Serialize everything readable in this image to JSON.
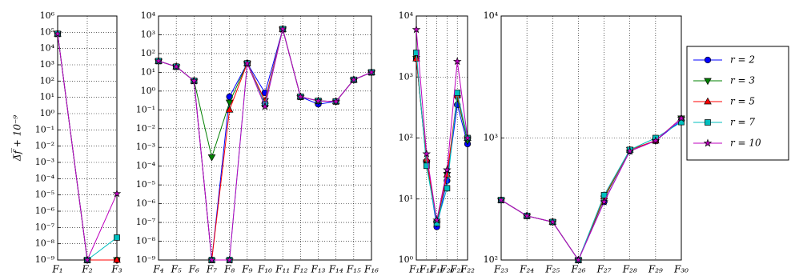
{
  "chart_data": [
    {
      "type": "line",
      "log_y": true,
      "grid": true,
      "ylabel": "Δ̅f̅ + 10⁻⁹",
      "categories": [
        "F₁",
        "F₂",
        "F₃"
      ],
      "ylim": [
        1e-09,
        1000000.0
      ],
      "yticks": [
        {
          "value": 1e-09,
          "label": "10⁻⁹"
        },
        {
          "value": 1e-08,
          "label": "10⁻⁸"
        },
        {
          "value": 1e-07,
          "label": "10⁻⁷"
        },
        {
          "value": 1e-06,
          "label": "10⁻⁶"
        },
        {
          "value": 1e-05,
          "label": "10⁻⁵"
        },
        {
          "value": 0.0001,
          "label": "10⁻⁴"
        },
        {
          "value": 0.001,
          "label": "10⁻³"
        },
        {
          "value": 0.01,
          "label": "10⁻²"
        },
        {
          "value": 0.1,
          "label": "10⁻¹"
        },
        {
          "value": 1,
          "label": "10⁰"
        },
        {
          "value": 10,
          "label": "10¹"
        },
        {
          "value": 100,
          "label": "10²"
        },
        {
          "value": 1000,
          "label": "10³"
        },
        {
          "value": 10000,
          "label": "10⁴"
        },
        {
          "value": 100000,
          "label": "10⁵"
        },
        {
          "value": 1000000,
          "label": "10⁶"
        }
      ],
      "series": [
        {
          "color": "#0000ff",
          "marker": "circle",
          "values": [
            80000,
            1e-09,
            1e-09
          ]
        },
        {
          "color": "#008000",
          "marker": "triangle-down",
          "values": [
            80000,
            1e-09,
            1e-09
          ]
        },
        {
          "color": "#ff0000",
          "marker": "triangle-up",
          "values": [
            80000,
            1e-09,
            1e-09
          ]
        },
        {
          "color": "#00bfbf",
          "marker": "square",
          "values": [
            80000,
            1e-09,
            2.4e-08
          ]
        },
        {
          "color": "#bf00bf",
          "marker": "star",
          "values": [
            80000,
            1e-09,
            1.2e-05
          ]
        }
      ]
    },
    {
      "type": "line",
      "log_y": true,
      "grid": true,
      "categories": [
        "F₄",
        "F₅",
        "F₆",
        "F₇",
        "F₈",
        "F₉",
        "F₁₀",
        "F₁₁",
        "F₁₂",
        "F₁₃",
        "F₁₄",
        "F₁₅",
        "F₁₆"
      ],
      "ylim": [
        1e-09,
        10000
      ],
      "yticks": [
        {
          "value": 1e-09,
          "label": "10⁻⁹"
        },
        {
          "value": 1e-08,
          "label": "10⁻⁸"
        },
        {
          "value": 1e-07,
          "label": "10⁻⁷"
        },
        {
          "value": 1e-06,
          "label": "10⁻⁶"
        },
        {
          "value": 1e-05,
          "label": "10⁻⁵"
        },
        {
          "value": 0.0001,
          "label": "10⁻⁴"
        },
        {
          "value": 0.001,
          "label": "10⁻³"
        },
        {
          "value": 0.01,
          "label": "10⁻²"
        },
        {
          "value": 0.1,
          "label": "10⁻¹"
        },
        {
          "value": 1,
          "label": "10⁰"
        },
        {
          "value": 10,
          "label": "10¹"
        },
        {
          "value": 100,
          "label": "10²"
        },
        {
          "value": 1000,
          "label": "10³"
        },
        {
          "value": 10000,
          "label": "10⁴"
        }
      ],
      "series": [
        {
          "color": "#0000ff",
          "marker": "circle",
          "values": [
            40,
            20,
            3.5,
            1e-09,
            0.5,
            30,
            0.8,
            2000,
            0.5,
            0.2,
            0.28,
            4,
            10
          ]
        },
        {
          "color": "#008000",
          "marker": "triangle-down",
          "values": [
            40,
            20,
            3.5,
            0.0003,
            0.25,
            30,
            0.3,
            2000,
            0.5,
            0.3,
            0.28,
            4,
            10
          ]
        },
        {
          "color": "#ff0000",
          "marker": "triangle-up",
          "values": [
            40,
            20,
            3.5,
            1e-09,
            0.1,
            30,
            0.3,
            2000,
            0.5,
            0.3,
            0.28,
            4,
            10
          ]
        },
        {
          "color": "#00bfbf",
          "marker": "square",
          "values": [
            40,
            20,
            3.5,
            1e-09,
            1e-09,
            30,
            0.2,
            2000,
            0.5,
            0.3,
            0.28,
            4,
            10
          ]
        },
        {
          "color": "#bf00bf",
          "marker": "star",
          "values": [
            40,
            20,
            3.5,
            1e-09,
            1e-09,
            30,
            0.15,
            2000,
            0.5,
            0.3,
            0.28,
            4,
            10
          ]
        }
      ]
    },
    {
      "type": "line",
      "log_y": true,
      "grid": true,
      "categories": [
        "F₁₇",
        "F₁₈",
        "F₁₉",
        "F₂₀",
        "F₂₁",
        "F₂₂"
      ],
      "ylim": [
        1,
        10000
      ],
      "yticks": [
        {
          "value": 1,
          "label": "10⁰"
        },
        {
          "value": 10,
          "label": "10¹"
        },
        {
          "value": 100,
          "label": "10²"
        },
        {
          "value": 1000,
          "label": "10³"
        },
        {
          "value": 10000,
          "label": "10⁴"
        }
      ],
      "series": [
        {
          "color": "#0000ff",
          "marker": "circle",
          "values": [
            2000,
            40,
            3.5,
            20,
            350,
            80
          ]
        },
        {
          "color": "#008000",
          "marker": "triangle-down",
          "values": [
            2000,
            40,
            4,
            25,
            450,
            90
          ]
        },
        {
          "color": "#ff0000",
          "marker": "triangle-up",
          "values": [
            2000,
            45,
            4.5,
            25,
            500,
            100
          ]
        },
        {
          "color": "#00bfbf",
          "marker": "square",
          "values": [
            2500,
            35,
            4,
            15,
            550,
            100
          ]
        },
        {
          "color": "#bf00bf",
          "marker": "star",
          "values": [
            6000,
            55,
            4.5,
            30,
            1800,
            100
          ]
        }
      ]
    },
    {
      "type": "line",
      "log_y": true,
      "grid": true,
      "legend": "outside-right",
      "categories": [
        "F₂₃",
        "F₂₄",
        "F₂₅",
        "F₂₆",
        "F₂₇",
        "F₂₈",
        "F₂₉",
        "F₃₀"
      ],
      "ylim": [
        100,
        10000
      ],
      "yticks": [
        {
          "value": 100,
          "label": "10²"
        },
        {
          "value": 1000,
          "label": "10³"
        },
        {
          "value": 10000,
          "label": "10⁴"
        }
      ],
      "series": [
        {
          "name": "r = 2",
          "color": "#0000ff",
          "marker": "circle",
          "values": [
            310,
            230,
            205,
            100,
            300,
            780,
            950,
            1400
          ]
        },
        {
          "name": "r = 3",
          "color": "#008000",
          "marker": "triangle-down",
          "values": [
            310,
            230,
            205,
            100,
            320,
            800,
            950,
            1450
          ]
        },
        {
          "name": "r = 5",
          "color": "#ff0000",
          "marker": "triangle-up",
          "values": [
            310,
            230,
            205,
            100,
            330,
            800,
            950,
            1450
          ]
        },
        {
          "name": "r = 7",
          "color": "#00bfbf",
          "marker": "square",
          "values": [
            310,
            230,
            205,
            100,
            340,
            800,
            1000,
            1350
          ]
        },
        {
          "name": "r = 10",
          "color": "#bf00bf",
          "marker": "star",
          "values": [
            310,
            230,
            205,
            100,
            300,
            780,
            950,
            1450
          ]
        }
      ]
    }
  ]
}
